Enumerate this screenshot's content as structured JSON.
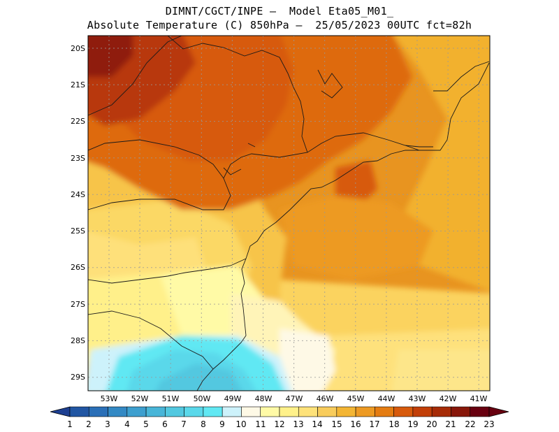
{
  "title": {
    "line1": "DIMNT/CGCT/INPE –  Model Eta05_M01_",
    "line2": "Absolute Temperature (C) 850hPa –  25/05/2023 00UTC fct=82h"
  },
  "map": {
    "lat_labels": [
      "20S",
      "21S",
      "22S",
      "23S",
      "24S",
      "25S",
      "26S",
      "27S",
      "28S",
      "29S"
    ],
    "lon_labels": [
      "53W",
      "52W",
      "51W",
      "50W",
      "49W",
      "48W",
      "47W",
      "46W",
      "45W",
      "44W",
      "43W",
      "42W",
      "41W"
    ]
  },
  "colorbar": {
    "values": [
      "1",
      "2",
      "3",
      "4",
      "5",
      "6",
      "7",
      "8",
      "9",
      "10",
      "11",
      "12",
      "13",
      "14",
      "15",
      "16",
      "17",
      "18",
      "19",
      "20",
      "21",
      "22",
      "23"
    ],
    "colors": [
      "#1d3f91",
      "#2156a3",
      "#2a6fb7",
      "#3389c4",
      "#3d9fcf",
      "#48b5d8",
      "#52c8e0",
      "#5ad8ea",
      "#61e8f3",
      "#cdf2fb",
      "#fef9e6",
      "#fffaa6",
      "#fff18a",
      "#fee27a",
      "#f8cc5c",
      "#f3b534",
      "#ed9a23",
      "#e47c12",
      "#d75a0c",
      "#c23f08",
      "#a62b07",
      "#88170a",
      "#680010"
    ]
  }
}
